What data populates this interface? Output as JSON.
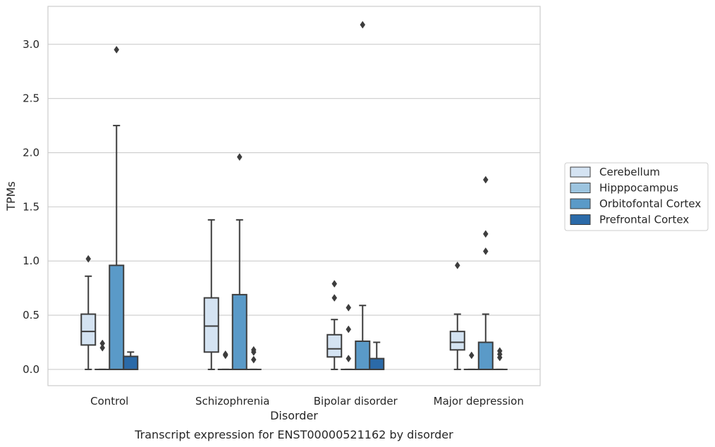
{
  "chart_data": {
    "type": "box",
    "title": "",
    "caption": "Transcript expression for ENST00000521162 by disorder",
    "xlabel": "Disorder",
    "ylabel": "TPMs",
    "ylim": [
      -0.15,
      3.35
    ],
    "yticks": [
      "0.0",
      "0.5",
      "1.0",
      "1.5",
      "2.0",
      "2.5",
      "3.0"
    ],
    "grid": "horizontal",
    "legend_position": "right",
    "categories": [
      "Control",
      "Schizophrenia",
      "Bipolar disorder",
      "Major depression"
    ],
    "series": [
      {
        "name": "Cerebellum",
        "color": "#d4e3f2",
        "boxes": [
          {
            "min": 0.0,
            "q1": 0.225,
            "median": 0.35,
            "q3": 0.51,
            "max": 0.86,
            "outliers": [
              1.02
            ]
          },
          {
            "min": 0.0,
            "q1": 0.16,
            "median": 0.4,
            "q3": 0.66,
            "max": 1.38,
            "outliers": []
          },
          {
            "min": 0.0,
            "q1": 0.115,
            "median": 0.19,
            "q3": 0.32,
            "max": 0.46,
            "outliers": [
              0.66,
              0.79
            ]
          },
          {
            "min": 0.0,
            "q1": 0.18,
            "median": 0.25,
            "q3": 0.35,
            "max": 0.51,
            "outliers": [
              0.96
            ]
          }
        ]
      },
      {
        "name": "Hipppocampus",
        "color": "#9cc4df",
        "boxes": [
          {
            "min": 0.0,
            "q1": 0.0,
            "median": 0.0,
            "q3": 0.0,
            "max": 0.0,
            "outliers": [
              0.2,
              0.24
            ]
          },
          {
            "min": 0.0,
            "q1": 0.0,
            "median": 0.0,
            "q3": 0.0,
            "max": 0.0,
            "outliers": [
              0.13,
              0.14
            ]
          },
          {
            "min": 0.0,
            "q1": 0.0,
            "median": 0.0,
            "q3": 0.0,
            "max": 0.0,
            "outliers": [
              0.1,
              0.37,
              0.57
            ]
          },
          {
            "min": 0.0,
            "q1": 0.0,
            "median": 0.0,
            "q3": 0.0,
            "max": 0.0,
            "outliers": [
              0.13
            ]
          }
        ]
      },
      {
        "name": "Orbitofontal Cortex",
        "color": "#5a9ac8",
        "boxes": [
          {
            "min": 0.0,
            "q1": 0.0,
            "median": 0.0,
            "q3": 0.96,
            "max": 2.25,
            "outliers": [
              2.95
            ]
          },
          {
            "min": 0.0,
            "q1": 0.0,
            "median": 0.0,
            "q3": 0.69,
            "max": 1.38,
            "outliers": [
              1.96
            ]
          },
          {
            "min": 0.0,
            "q1": 0.0,
            "median": 0.0,
            "q3": 0.26,
            "max": 0.59,
            "outliers": [
              3.18
            ]
          },
          {
            "min": 0.0,
            "q1": 0.0,
            "median": 0.0,
            "q3": 0.25,
            "max": 0.51,
            "outliers": [
              1.09,
              1.25,
              1.75
            ]
          }
        ]
      },
      {
        "name": "Prefrontal Cortex",
        "color": "#2b6aa8",
        "boxes": [
          {
            "min": 0.0,
            "q1": 0.0,
            "median": 0.0,
            "q3": 0.12,
            "max": 0.16,
            "outliers": []
          },
          {
            "min": 0.0,
            "q1": 0.0,
            "median": 0.0,
            "q3": 0.0,
            "max": 0.0,
            "outliers": [
              0.09,
              0.16,
              0.18
            ]
          },
          {
            "min": 0.0,
            "q1": 0.0,
            "median": 0.0,
            "q3": 0.1,
            "max": 0.25,
            "outliers": []
          },
          {
            "min": 0.0,
            "q1": 0.0,
            "median": 0.0,
            "q3": 0.0,
            "max": 0.0,
            "outliers": [
              0.11,
              0.14,
              0.17
            ]
          }
        ]
      }
    ]
  }
}
